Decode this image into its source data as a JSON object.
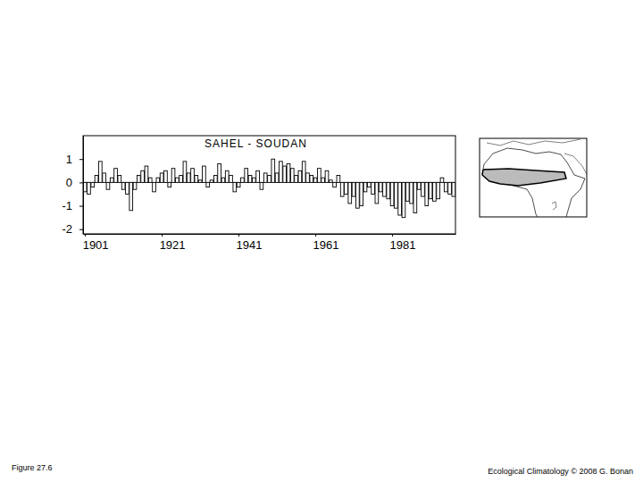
{
  "chart_data": {
    "type": "bar",
    "title": "SAHEL - SOUDAN",
    "x": [
      1901,
      1902,
      1903,
      1904,
      1905,
      1906,
      1907,
      1908,
      1909,
      1910,
      1911,
      1912,
      1913,
      1914,
      1915,
      1916,
      1917,
      1918,
      1919,
      1920,
      1921,
      1922,
      1923,
      1924,
      1925,
      1926,
      1927,
      1928,
      1929,
      1930,
      1931,
      1932,
      1933,
      1934,
      1935,
      1936,
      1937,
      1938,
      1939,
      1940,
      1941,
      1942,
      1943,
      1944,
      1945,
      1946,
      1947,
      1948,
      1949,
      1950,
      1951,
      1952,
      1953,
      1954,
      1955,
      1956,
      1957,
      1958,
      1959,
      1960,
      1961,
      1962,
      1963,
      1964,
      1965,
      1966,
      1967,
      1968,
      1969,
      1970,
      1971,
      1972,
      1973,
      1974,
      1975,
      1976,
      1977,
      1978,
      1979,
      1980,
      1981,
      1982,
      1983,
      1984,
      1985,
      1986,
      1987,
      1988,
      1989,
      1990,
      1991,
      1992,
      1993,
      1994,
      1995,
      1996,
      1997
    ],
    "values": [
      -0.4,
      -0.5,
      -0.2,
      0.3,
      0.9,
      0.4,
      -0.3,
      0.2,
      0.6,
      0.3,
      -0.3,
      -0.5,
      -1.2,
      -0.3,
      0.3,
      0.5,
      0.7,
      0.2,
      -0.4,
      0.2,
      0.4,
      0.5,
      -0.2,
      0.6,
      0.2,
      0.3,
      0.9,
      0.4,
      0.6,
      0.3,
      0.1,
      0.7,
      -0.2,
      0.1,
      0.3,
      0.8,
      0.2,
      0.5,
      0.3,
      -0.4,
      -0.2,
      0.2,
      0.6,
      0.3,
      0.2,
      0.5,
      -0.3,
      0.4,
      0.3,
      1.0,
      0.4,
      0.9,
      0.7,
      0.8,
      0.6,
      0.3,
      0.5,
      0.9,
      0.4,
      0.3,
      0.2,
      0.6,
      0.2,
      0.5,
      0.1,
      -0.2,
      0.3,
      -0.6,
      -0.5,
      -0.9,
      -0.6,
      -1.1,
      -1.0,
      -0.4,
      -0.2,
      -0.5,
      -0.9,
      -0.4,
      -0.6,
      -0.7,
      -1.0,
      -1.1,
      -1.4,
      -1.5,
      -0.8,
      -0.9,
      -1.3,
      -0.3,
      -0.6,
      -1.0,
      -0.7,
      -0.8,
      -0.7,
      0.2,
      -0.4,
      -0.5,
      -0.6
    ],
    "color": "#ffffff",
    "xlim": [
      1900.5,
      1997.5
    ],
    "xticks": [
      1901,
      1921,
      1941,
      1961,
      1981
    ],
    "ylim": [
      -2.2,
      2
    ],
    "yticks": [
      1,
      0,
      -1,
      -2
    ],
    "annotations": [
      "Figure 27.6",
      "Ecological Climatology © 2008 G. Bonan"
    ]
  }
}
